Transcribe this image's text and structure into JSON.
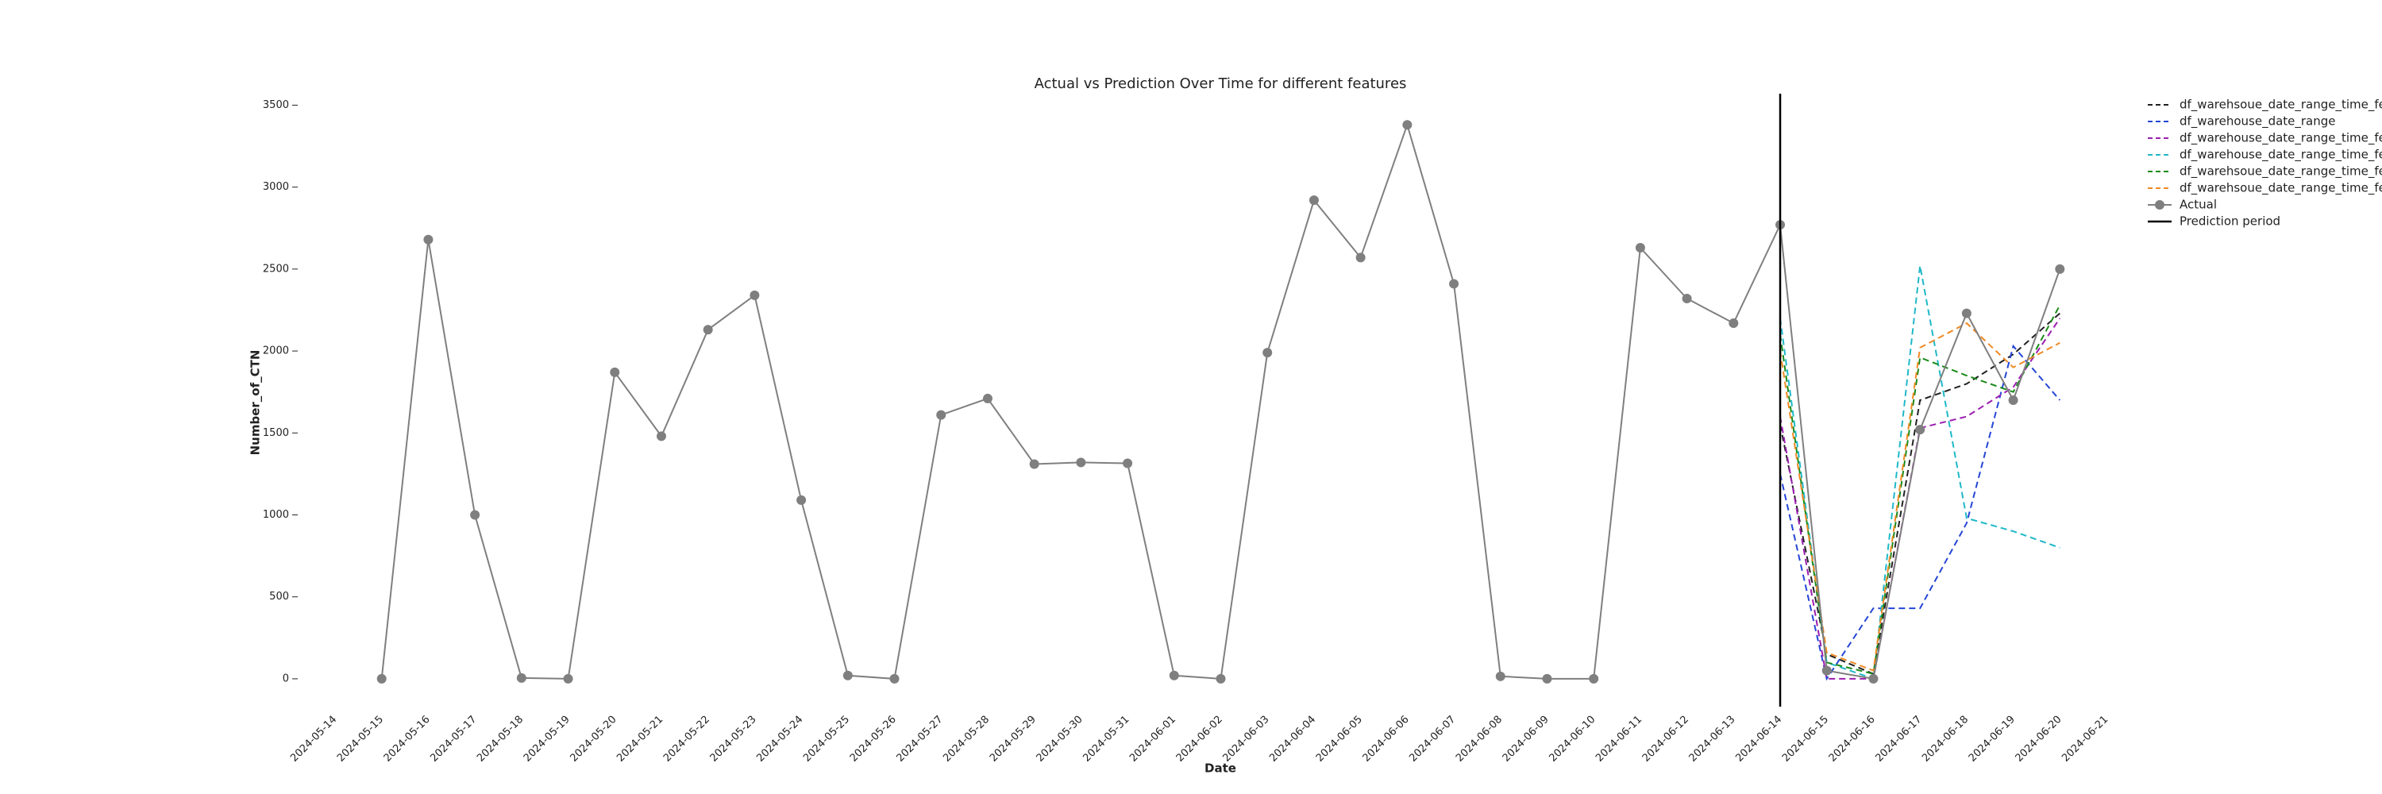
{
  "chart_data": {
    "type": "line",
    "title": "Actual vs Prediction Over Time for different features",
    "xlabel": "Date",
    "ylabel": "Number_of_CTN",
    "xlim": [
      "2024-05-14",
      "2024-06-21"
    ],
    "xticks": [
      "2024-05-14",
      "2024-05-15",
      "2024-05-16",
      "2024-05-17",
      "2024-05-18",
      "2024-05-19",
      "2024-05-20",
      "2024-05-21",
      "2024-05-22",
      "2024-05-23",
      "2024-05-24",
      "2024-05-25",
      "2024-05-26",
      "2024-05-27",
      "2024-05-28",
      "2024-05-29",
      "2024-05-30",
      "2024-05-31",
      "2024-06-01",
      "2024-06-02",
      "2024-06-03",
      "2024-06-04",
      "2024-06-05",
      "2024-06-06",
      "2024-06-07",
      "2024-06-08",
      "2024-06-09",
      "2024-06-10",
      "2024-06-11",
      "2024-06-12",
      "2024-06-13",
      "2024-06-14",
      "2024-06-15",
      "2024-06-16",
      "2024-06-17",
      "2024-06-18",
      "2024-06-19",
      "2024-06-20",
      "2024-06-21"
    ],
    "ylim": [
      -170,
      3570
    ],
    "yticks": [
      0,
      500,
      1000,
      1500,
      2000,
      2500,
      3000,
      3500
    ],
    "grid": false,
    "legend": "upper right outside",
    "series": [
      {
        "name": "df_warehsoue_date_range_time_feat",
        "color": "#222222",
        "style": "dashed",
        "x": [
          "2024-06-14",
          "2024-06-15",
          "2024-06-16",
          "2024-06-17",
          "2024-06-18",
          "2024-06-19",
          "2024-06-20"
        ],
        "values": [
          1550,
          150,
          30,
          1700,
          1800,
          1980,
          2230
        ]
      },
      {
        "name": "df_warehouse_date_range",
        "color": "#2445d6",
        "style": "dashed",
        "x": [
          "2024-06-14",
          "2024-06-15",
          "2024-06-16",
          "2024-06-17",
          "2024-06-18",
          "2024-06-19",
          "2024-06-20"
        ],
        "values": [
          1250,
          0,
          430,
          430,
          950,
          2030,
          1700
        ]
      },
      {
        "name": "df_warehouse_date_range_time_feat",
        "color": "#9b1fb0",
        "style": "dashed",
        "x": [
          "2024-06-14",
          "2024-06-15",
          "2024-06-16",
          "2024-06-17",
          "2024-06-18",
          "2024-06-19",
          "2024-06-20"
        ],
        "values": [
          1600,
          0,
          0,
          1530,
          1600,
          1780,
          2200
        ]
      },
      {
        "name": "df_warehouse_date_range_time_feat",
        "color": "#1fb8c8",
        "style": "dashed",
        "x": [
          "2024-06-14",
          "2024-06-15",
          "2024-06-16",
          "2024-06-17",
          "2024-06-18",
          "2024-06-19",
          "2024-06-20"
        ],
        "values": [
          2200,
          100,
          0,
          2520,
          980,
          900,
          800
        ]
      },
      {
        "name": "df_warehsoue_date_range_time_feat",
        "color": "#1a8a1a",
        "style": "dashed",
        "x": [
          "2024-06-14",
          "2024-06-15",
          "2024-06-16",
          "2024-06-17",
          "2024-06-18",
          "2024-06-19",
          "2024-06-20"
        ],
        "values": [
          2100,
          100,
          30,
          1960,
          1850,
          1750,
          2280
        ]
      },
      {
        "name": "df_warehsoue_date_range_time_feat",
        "color": "#f08a24",
        "style": "dashed",
        "x": [
          "2024-06-14",
          "2024-06-15",
          "2024-06-16",
          "2024-06-17",
          "2024-06-18",
          "2024-06-19",
          "2024-06-20"
        ],
        "values": [
          2000,
          160,
          50,
          2020,
          2170,
          1900,
          2050
        ]
      },
      {
        "name": "Actual",
        "color": "#7f7f7f",
        "style": "solid",
        "marker": "o",
        "x": [
          "2024-05-15",
          "2024-05-16",
          "2024-05-17",
          "2024-05-18",
          "2024-05-19",
          "2024-05-20",
          "2024-05-21",
          "2024-05-22",
          "2024-05-23",
          "2024-05-24",
          "2024-05-25",
          "2024-05-26",
          "2024-05-27",
          "2024-05-28",
          "2024-05-29",
          "2024-05-30",
          "2024-05-31",
          "2024-06-01",
          "2024-06-02",
          "2024-06-03",
          "2024-06-04",
          "2024-06-05",
          "2024-06-06",
          "2024-06-07",
          "2024-06-08",
          "2024-06-09",
          "2024-06-10",
          "2024-06-11",
          "2024-06-12",
          "2024-06-13",
          "2024-06-14",
          "2024-06-15",
          "2024-06-16",
          "2024-06-17",
          "2024-06-18",
          "2024-06-19",
          "2024-06-20"
        ],
        "values": [
          0,
          2680,
          1000,
          5,
          0,
          1870,
          1480,
          2130,
          2340,
          1090,
          20,
          0,
          1610,
          1710,
          1310,
          1320,
          1315,
          20,
          0,
          1990,
          2920,
          2570,
          3380,
          2410,
          15,
          0,
          0,
          2630,
          2320,
          2170,
          2770,
          50,
          0,
          1520,
          2230,
          1700,
          2500
        ]
      }
    ],
    "vline": {
      "x": "2024-06-14",
      "label": "Prediction period",
      "color": "#000000"
    }
  }
}
